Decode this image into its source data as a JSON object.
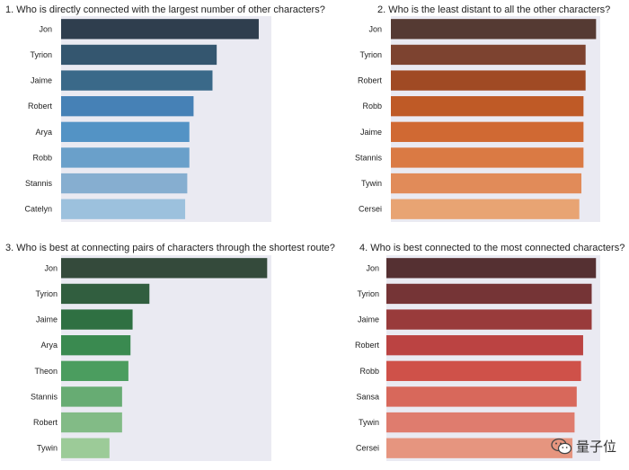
{
  "chart_data": [
    {
      "type": "bar",
      "orientation": "horizontal",
      "title": "1. Who is directly connected with the largest number of other characters?",
      "categories": [
        "Jon",
        "Tyrion",
        "Jaime",
        "Robert",
        "Arya",
        "Robb",
        "Stannis",
        "Catelyn"
      ],
      "values": [
        0.94,
        0.74,
        0.72,
        0.63,
        0.61,
        0.61,
        0.6,
        0.59
      ],
      "xlim": [
        0,
        1
      ],
      "colors": [
        "#2f3e4e",
        "#34566f",
        "#3a6989",
        "#4681b6",
        "#5393c5",
        "#6aa0ca",
        "#86aed0",
        "#9cc1dd"
      ],
      "grid": false
    },
    {
      "type": "bar",
      "orientation": "horizontal",
      "title": "2. Who is the least distant to all the other characters?",
      "categories": [
        "Jon",
        "Tyrion",
        "Robert",
        "Robb",
        "Jaime",
        "Stannis",
        "Tywin",
        "Cersei"
      ],
      "values": [
        0.98,
        0.93,
        0.93,
        0.92,
        0.92,
        0.92,
        0.91,
        0.9
      ],
      "xlim": [
        0,
        1
      ],
      "colors": [
        "#553a33",
        "#7d4330",
        "#a04a24",
        "#bf5a26",
        "#d06933",
        "#da7a44",
        "#e18b59",
        "#e8a473"
      ],
      "grid": false
    },
    {
      "type": "bar",
      "orientation": "horizontal",
      "title": "3. Who is best at connecting pairs of characters through the shortest route?",
      "categories": [
        "Jon",
        "Tyrion",
        "Jaime",
        "Arya",
        "Theon",
        "Stannis",
        "Robert",
        "Tywin"
      ],
      "values": [
        0.98,
        0.42,
        0.34,
        0.33,
        0.32,
        0.29,
        0.29,
        0.23
      ],
      "xlim": [
        0,
        1
      ],
      "colors": [
        "#344a3b",
        "#315e3f",
        "#2f7042",
        "#3a8a50",
        "#4b9d5f",
        "#67ac73",
        "#82bb86",
        "#9ccb98"
      ],
      "grid": false
    },
    {
      "type": "bar",
      "orientation": "horizontal",
      "title": "4. Who is best connected to the most connected characters?",
      "categories": [
        "Jon",
        "Tyrion",
        "Jaime",
        "Robert",
        "Robb",
        "Sansa",
        "Tywin",
        "Cersei"
      ],
      "values": [
        0.98,
        0.96,
        0.96,
        0.92,
        0.91,
        0.89,
        0.88,
        0.87
      ],
      "xlim": [
        0,
        1
      ],
      "colors": [
        "#553032",
        "#753436",
        "#993b3b",
        "#bb4342",
        "#cf5149",
        "#d8685b",
        "#df7c6e",
        "#e6957f"
      ],
      "grid": false
    }
  ],
  "watermark": {
    "icon": "wechat-icon",
    "text": "量子位"
  }
}
